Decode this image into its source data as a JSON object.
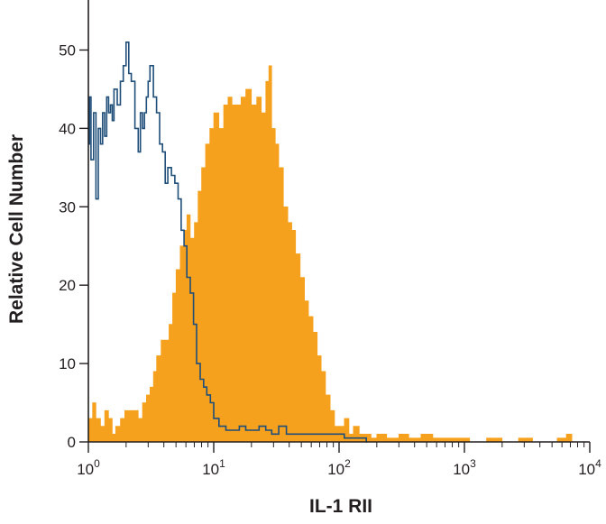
{
  "chart_data": {
    "type": "area",
    "title": "",
    "xlabel": "IL-1 RII",
    "ylabel": "Relative Cell Number",
    "x_scale": "log",
    "xlim": [
      1,
      10000
    ],
    "ylim": [
      0,
      55
    ],
    "grid": false,
    "legend": "none",
    "x_ticks": [
      {
        "base": "10",
        "exp": "0"
      },
      {
        "base": "10",
        "exp": "1"
      },
      {
        "base": "10",
        "exp": "2"
      },
      {
        "base": "10",
        "exp": "3"
      },
      {
        "base": "10",
        "exp": "4"
      }
    ],
    "y_ticks": [
      "0",
      "10",
      "20",
      "30",
      "40",
      "50"
    ],
    "series": [
      {
        "kind": "filled",
        "color": "#f6a11e",
        "points": [
          [
            1.0,
            3
          ],
          [
            1.08,
            5
          ],
          [
            1.15,
            3
          ],
          [
            1.25,
            2
          ],
          [
            1.35,
            4
          ],
          [
            1.45,
            3
          ],
          [
            1.55,
            1
          ],
          [
            1.65,
            2
          ],
          [
            1.8,
            3
          ],
          [
            1.95,
            4
          ],
          [
            2.1,
            4
          ],
          [
            2.3,
            4
          ],
          [
            2.5,
            3
          ],
          [
            2.7,
            5
          ],
          [
            2.9,
            6
          ],
          [
            3.1,
            7
          ],
          [
            3.3,
            9
          ],
          [
            3.5,
            11
          ],
          [
            3.8,
            13
          ],
          [
            4.1,
            13
          ],
          [
            4.4,
            15
          ],
          [
            4.7,
            19
          ],
          [
            5.0,
            22
          ],
          [
            5.4,
            25
          ],
          [
            5.8,
            27
          ],
          [
            6.1,
            29
          ],
          [
            6.5,
            26
          ],
          [
            7.0,
            28
          ],
          [
            7.5,
            32
          ],
          [
            8.0,
            35
          ],
          [
            8.6,
            38
          ],
          [
            9.3,
            40
          ],
          [
            10.0,
            42
          ],
          [
            11.0,
            40
          ],
          [
            12.0,
            43
          ],
          [
            13.0,
            44
          ],
          [
            14.0,
            43
          ],
          [
            15.0,
            43
          ],
          [
            16.5,
            44
          ],
          [
            18.0,
            45
          ],
          [
            20.0,
            43
          ],
          [
            22.0,
            44
          ],
          [
            24.0,
            42
          ],
          [
            26.0,
            46
          ],
          [
            27.5,
            48
          ],
          [
            29.0,
            40
          ],
          [
            31.0,
            38
          ],
          [
            33.0,
            35
          ],
          [
            36.0,
            30
          ],
          [
            39.0,
            28
          ],
          [
            42.0,
            27
          ],
          [
            45.0,
            24
          ],
          [
            49.0,
            21
          ],
          [
            53.0,
            18
          ],
          [
            57.0,
            16
          ],
          [
            62.0,
            14
          ],
          [
            67.0,
            11
          ],
          [
            72.0,
            9
          ],
          [
            78.0,
            6
          ],
          [
            85.0,
            4
          ],
          [
            92.0,
            2
          ],
          [
            100.0,
            2
          ],
          [
            110.0,
            3
          ],
          [
            120.0,
            1
          ],
          [
            130.0,
            2
          ],
          [
            145.0,
            1
          ],
          [
            160.0,
            1
          ],
          [
            180.0,
            0.5
          ],
          [
            200.0,
            1
          ],
          [
            240.0,
            0.5
          ],
          [
            300.0,
            1
          ],
          [
            360.0,
            0.5
          ],
          [
            450.0,
            1
          ],
          [
            560.0,
            0.5
          ],
          [
            700.0,
            0.5
          ],
          [
            900.0,
            0.5
          ],
          [
            1100.0,
            0
          ],
          [
            1500.0,
            0.5
          ],
          [
            2000.0,
            0
          ],
          [
            2700.0,
            0.5
          ],
          [
            3500.0,
            0
          ],
          [
            4500.0,
            0
          ],
          [
            5500.0,
            0.5
          ],
          [
            6500.0,
            1
          ],
          [
            7200.0,
            0
          ]
        ]
      },
      {
        "kind": "outline",
        "color": "#1f4e79",
        "points": [
          [
            1.0,
            38
          ],
          [
            1.02,
            44
          ],
          [
            1.05,
            36
          ],
          [
            1.1,
            42
          ],
          [
            1.15,
            31
          ],
          [
            1.2,
            40
          ],
          [
            1.25,
            38
          ],
          [
            1.3,
            42
          ],
          [
            1.35,
            39
          ],
          [
            1.4,
            44
          ],
          [
            1.45,
            42
          ],
          [
            1.5,
            43
          ],
          [
            1.55,
            41
          ],
          [
            1.6,
            45
          ],
          [
            1.7,
            43
          ],
          [
            1.8,
            46
          ],
          [
            1.9,
            48
          ],
          [
            2.0,
            51
          ],
          [
            2.1,
            47
          ],
          [
            2.2,
            46
          ],
          [
            2.35,
            40
          ],
          [
            2.5,
            37
          ],
          [
            2.6,
            42
          ],
          [
            2.7,
            40
          ],
          [
            2.8,
            42
          ],
          [
            2.9,
            44
          ],
          [
            3.0,
            46
          ],
          [
            3.1,
            48
          ],
          [
            3.3,
            44
          ],
          [
            3.5,
            42
          ],
          [
            3.7,
            38
          ],
          [
            3.9,
            37
          ],
          [
            4.1,
            33
          ],
          [
            4.3,
            35
          ],
          [
            4.6,
            34
          ],
          [
            4.9,
            33
          ],
          [
            5.2,
            31
          ],
          [
            5.5,
            27
          ],
          [
            5.8,
            25
          ],
          [
            6.1,
            21
          ],
          [
            6.5,
            19
          ],
          [
            6.9,
            15
          ],
          [
            7.3,
            10
          ],
          [
            7.8,
            8
          ],
          [
            8.3,
            7
          ],
          [
            8.8,
            6
          ],
          [
            9.4,
            5
          ],
          [
            10.0,
            3
          ],
          [
            11.0,
            2
          ],
          [
            12.5,
            1.5
          ],
          [
            14.0,
            1.5
          ],
          [
            16.0,
            2
          ],
          [
            18.0,
            1.5
          ],
          [
            20.0,
            1.5
          ],
          [
            23.0,
            2
          ],
          [
            26.0,
            1.5
          ],
          [
            29.0,
            1
          ],
          [
            33.0,
            2
          ],
          [
            38.0,
            1
          ],
          [
            45.0,
            1
          ],
          [
            55.0,
            1
          ],
          [
            70.0,
            1
          ],
          [
            90.0,
            1
          ],
          [
            110.0,
            0.5
          ],
          [
            140.0,
            0.5
          ],
          [
            165.0,
            0
          ]
        ]
      }
    ]
  }
}
